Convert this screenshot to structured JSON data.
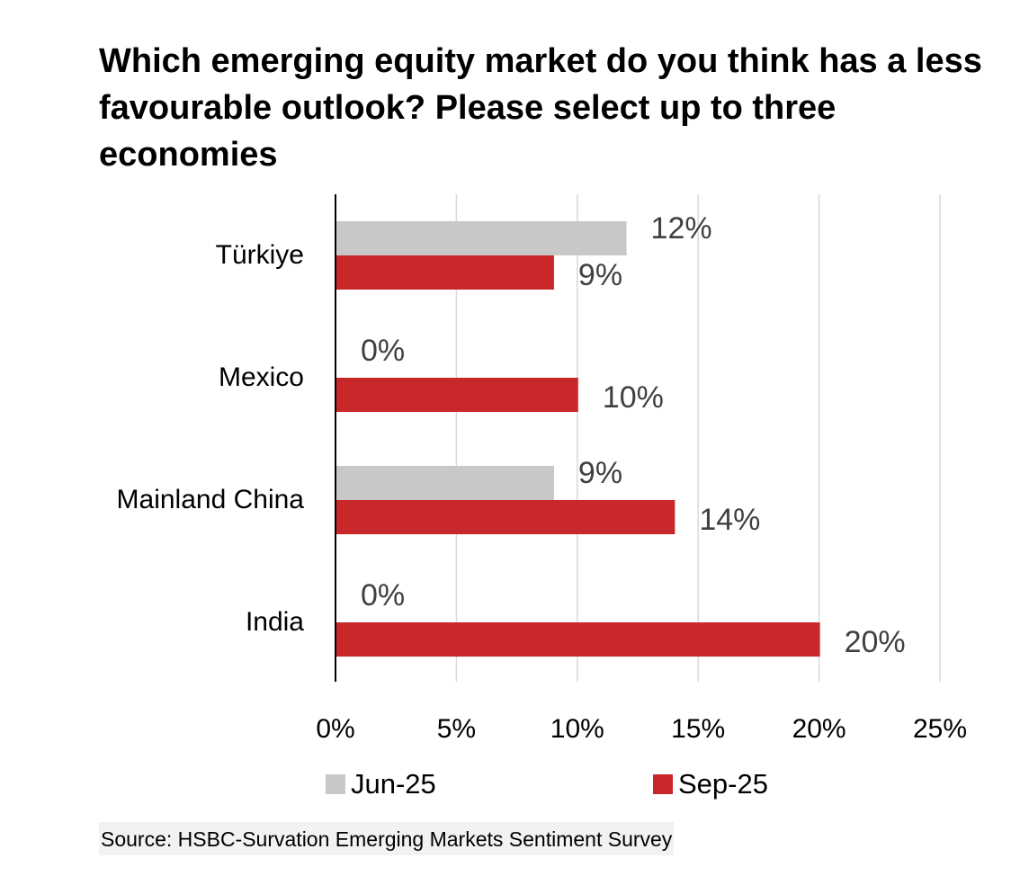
{
  "title": "Which emerging equity market do you think has a less favourable outlook? Please select up to three economies",
  "source": "Source: HSBC-Survation Emerging Markets Sentiment Survey",
  "colors": {
    "jun25": "#c8c8c8",
    "sep25": "#c8282a",
    "grid": "#d9d9d9",
    "axis": "#000000"
  },
  "chart_data": {
    "type": "bar",
    "orientation": "horizontal",
    "categories": [
      "Türkiye",
      "Mexico",
      "Mainland China",
      "India"
    ],
    "series": [
      {
        "name": "Jun-25",
        "values": [
          12,
          0,
          9,
          0
        ]
      },
      {
        "name": "Sep-25",
        "values": [
          9,
          10,
          14,
          20
        ]
      }
    ],
    "data_labels": [
      [
        "12%",
        "0%",
        "9%",
        "0%"
      ],
      [
        "9%",
        "10%",
        "14%",
        "20%"
      ]
    ],
    "xlim": [
      0,
      25
    ],
    "xticks": [
      0,
      5,
      10,
      15,
      20,
      25
    ],
    "xtick_labels": [
      "0%",
      "5%",
      "10%",
      "15%",
      "20%",
      "25%"
    ],
    "grid": true,
    "legend": "bottom"
  }
}
